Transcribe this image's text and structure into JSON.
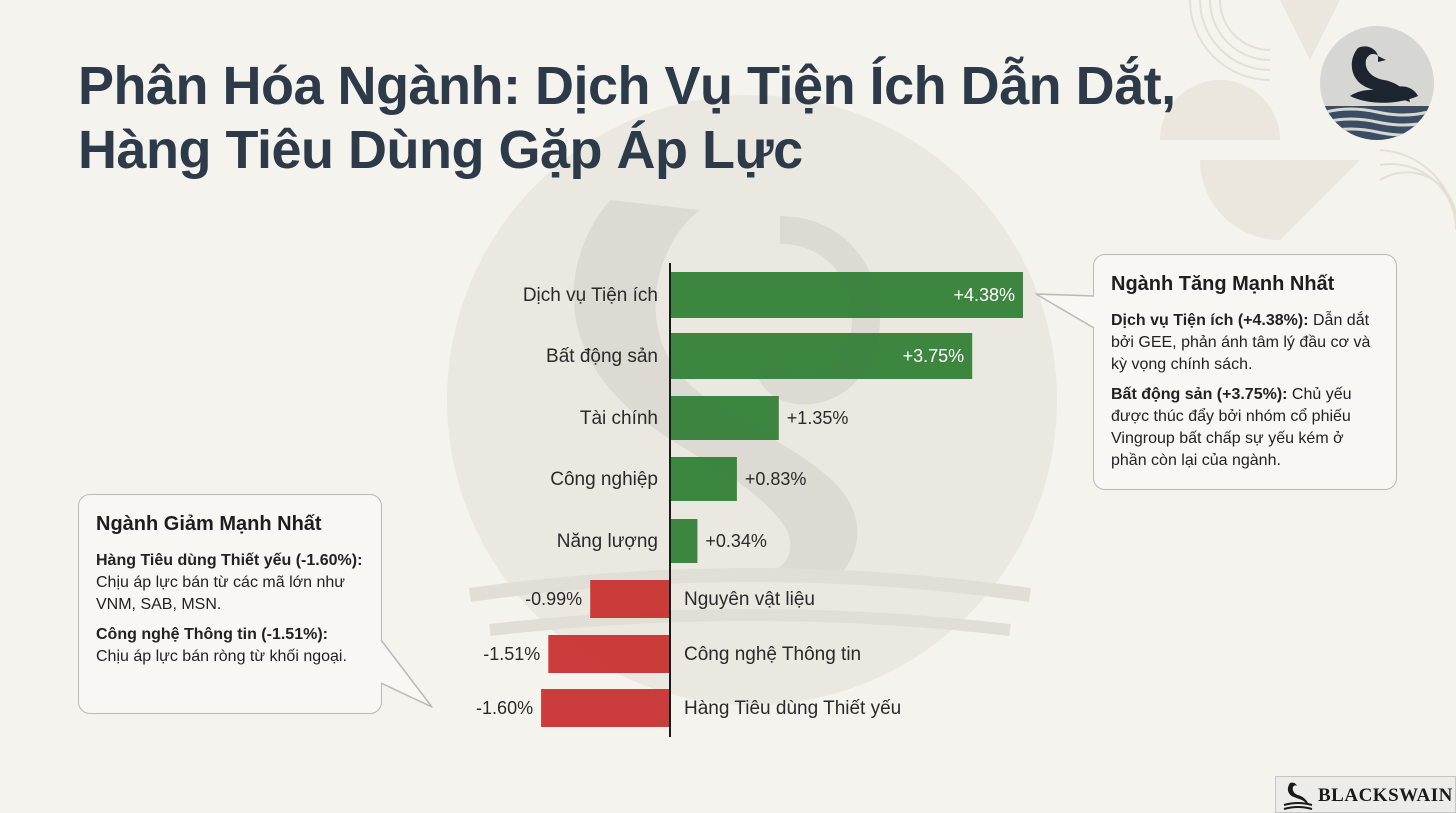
{
  "title": {
    "line1": "Phân Hóa Ngành: Dịch Vụ Tiện Ích Dẫn Dắt,",
    "line2": "Hàng Tiêu Dùng Gặp Áp Lực"
  },
  "chart_data": {
    "type": "bar",
    "orientation": "horizontal",
    "categories": [
      "Dịch vụ Tiện ích",
      "Bất động sản",
      "Tài chính",
      "Công nghiệp",
      "Năng lượng",
      "Nguyên vật liệu",
      "Công nghệ Thông tin",
      "Hàng Tiêu dùng Thiết yếu"
    ],
    "values": [
      4.38,
      3.75,
      1.35,
      0.83,
      0.34,
      -0.99,
      -1.51,
      -1.6
    ],
    "value_labels": [
      "+4.38%",
      "+3.75%",
      "+1.35%",
      "+0.83%",
      "+0.34%",
      "-0.99%",
      "-1.51%",
      "-1.60%"
    ],
    "colors": {
      "positive": "#2e7d32",
      "negative": "#c62828"
    },
    "grid": false,
    "legend": "none"
  },
  "callouts": {
    "up": {
      "title": "Ngành Tăng Mạnh Nhất",
      "item1_bold": "Dịch vụ Tiện ích (+4.38%):",
      "item1_text": " Dẫn dắt bởi GEE, phản ánh tâm lý đầu cơ và kỳ vọng chính sách.",
      "item2_bold": "Bất động sản (+3.75%):",
      "item2_text": " Chủ yếu được thúc đẩy bởi nhóm cổ phiếu Vingroup bất chấp sự yếu kém ở phần còn lại của ngành."
    },
    "down": {
      "title": "Ngành Giảm Mạnh Nhất",
      "item1_bold": "Hàng Tiêu dùng Thiết yếu (-1.60%):",
      "item1_text": " Chịu áp lực bán từ các mã lớn như VNM, SAB, MSN.",
      "item2_bold": "Công nghệ Thông tin (-1.51%):",
      "item2_text": " Chịu áp lực bán ròng từ khối ngoại."
    }
  },
  "brand": {
    "name": "BLACKSWAIN"
  },
  "icons": {
    "logo": "black-swan-icon",
    "watermark": "swan-watermark-icon"
  }
}
